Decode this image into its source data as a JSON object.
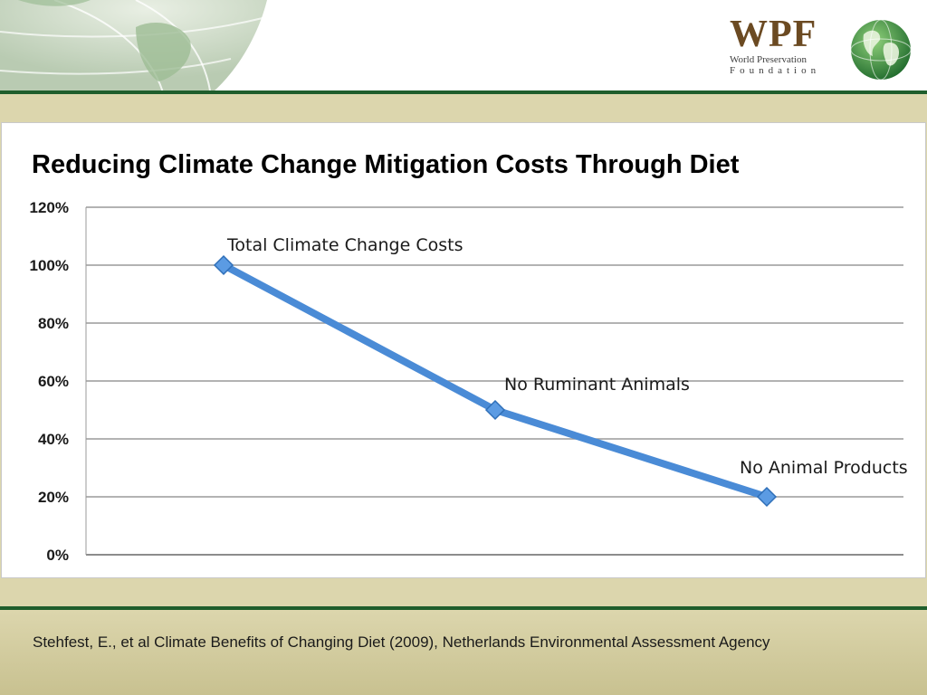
{
  "logo": {
    "wordmark": "WPF",
    "line1": "World Preservation",
    "line2": "Foundation"
  },
  "slide": {
    "title": "Reducing Climate Change Mitigation Costs Through Diet",
    "citation": "Stehfest, E.,  et al Climate Benefits of Changing Diet (2009), Netherlands Environmental Assessment Agency"
  },
  "colors": {
    "line": "#4a8bd6",
    "marker": "#5b9be3",
    "header_rule": "#1f5e2c",
    "band": "#dcd6ad"
  },
  "chart_data": {
    "type": "line",
    "title": "Reducing Climate Change Mitigation Costs Through Diet",
    "xlabel": "",
    "ylabel": "",
    "ylim": [
      0,
      120
    ],
    "yticks": [
      0,
      20,
      40,
      60,
      80,
      100,
      120
    ],
    "ytick_labels": [
      "0%",
      "20%",
      "40%",
      "60%",
      "80%",
      "100%",
      "120%"
    ],
    "grid": true,
    "legend": "none",
    "points": [
      {
        "label": "Total Climate Change Costs",
        "value": 100
      },
      {
        "label": "No Ruminant Animals",
        "value": 50
      },
      {
        "label": "No Animal Products",
        "value": 20
      }
    ]
  }
}
